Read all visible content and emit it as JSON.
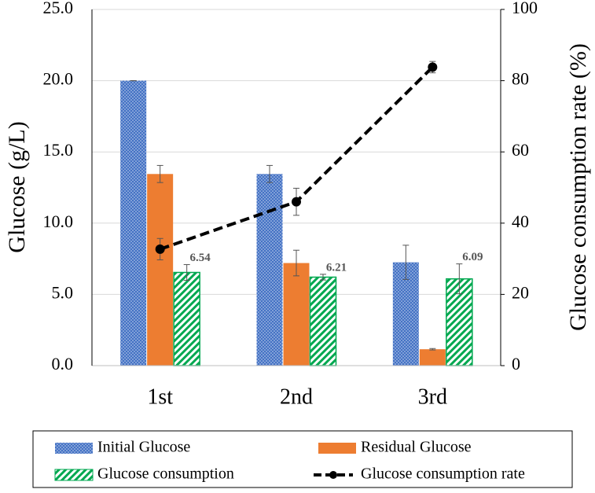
{
  "chart_data": {
    "type": "bar",
    "y_label": "Glucose (g/L)",
    "y2_label": "Glucose consumption rate (%)",
    "categories": [
      "1st",
      "2nd",
      "3rd"
    ],
    "series": [
      {
        "name": "Initial Glucose",
        "color": "#4472c4",
        "pattern": "dots",
        "values": [
          20.0,
          13.45,
          7.25
        ],
        "errors": [
          0,
          0.6,
          1.2
        ]
      },
      {
        "name": "Residual Glucose",
        "color": "#ed7d31",
        "pattern": "solid",
        "values": [
          13.45,
          7.2,
          1.15
        ],
        "errors": [
          0.6,
          0.9,
          0.05
        ]
      },
      {
        "name": "Glucose consumption",
        "color": "#00a850",
        "pattern": "hatch",
        "values": [
          6.54,
          6.21,
          6.09
        ],
        "errors": [
          0.55,
          0.2,
          1.05
        ],
        "show_labels": true
      },
      {
        "name": "Glucose consumption rate",
        "color": "#000000",
        "type": "line",
        "axis": "y2",
        "values": [
          32.7,
          46.0,
          83.8
        ],
        "errors": [
          3.0,
          3.8,
          1.6
        ]
      }
    ],
    "ylim": [
      0,
      25
    ],
    "yticks": [
      {
        "value": 0,
        "label": "0.0"
      },
      {
        "value": 5,
        "label": "5.0"
      },
      {
        "value": 10,
        "label": "10.0"
      },
      {
        "value": 15,
        "label": "15.0"
      },
      {
        "value": 20,
        "label": "20.0"
      },
      {
        "value": 25,
        "label": "25.0"
      }
    ],
    "y2lim": [
      0,
      100
    ],
    "y2ticks": [
      0,
      20,
      40,
      60,
      80,
      100
    ],
    "grid": true,
    "legend": "bottom"
  }
}
